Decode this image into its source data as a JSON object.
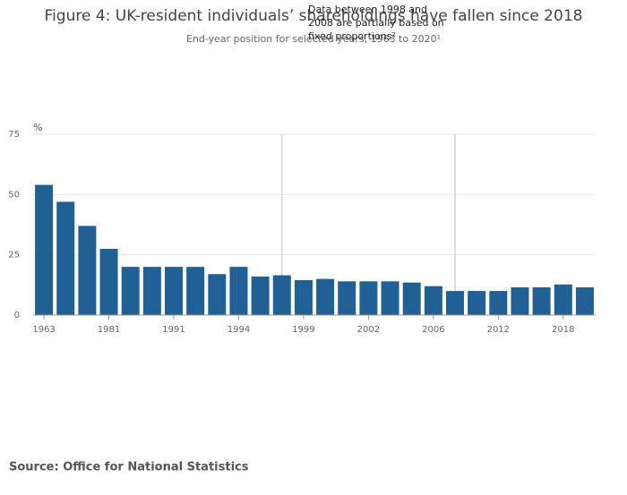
{
  "chart_data": {
    "type": "bar",
    "title": "Figure 4: UK-resident individuals’ shareholdings have fallen since 2018",
    "subtitle": "End-year position for selected years, 1963 to 2020¹",
    "y_label": "%",
    "annotation": [
      "Data between 1998 and",
      "2008 are partially based on",
      "fixed proportions²"
    ],
    "source": "Source: Office for National Statistics",
    "categories": [
      "1963",
      null,
      null,
      "1981",
      null,
      null,
      "1991",
      null,
      null,
      "1994",
      null,
      null,
      "1999",
      null,
      null,
      "2002",
      null,
      null,
      "2006",
      null,
      null,
      "2012",
      null,
      null,
      "2018",
      null
    ],
    "values": [
      54,
      47,
      37,
      27.5,
      20,
      20,
      20,
      20,
      17,
      20,
      16,
      16.5,
      14.5,
      15,
      14,
      14,
      14,
      13.5,
      12,
      10,
      10,
      10,
      11.5,
      11.5,
      12.7,
      11.5
    ],
    "color": "#206095",
    "ylim": [
      0,
      75
    ],
    "yticks": [
      0,
      25,
      50,
      75
    ],
    "grid": true
  }
}
